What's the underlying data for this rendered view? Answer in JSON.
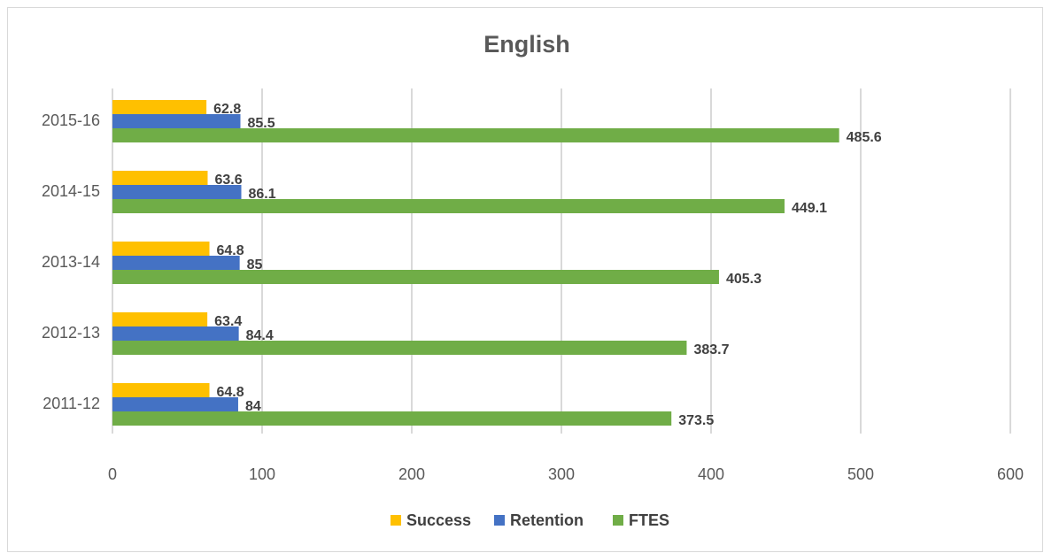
{
  "chart_data": {
    "type": "bar",
    "orientation": "horizontal",
    "title": "English",
    "categories": [
      "2011-12",
      "2012-13",
      "2013-14",
      "2014-15",
      "2015-16"
    ],
    "series": [
      {
        "name": "Success",
        "color": "#ffc000",
        "values": [
          64.8,
          63.4,
          64.8,
          63.6,
          62.8
        ]
      },
      {
        "name": "Retention",
        "color": "#4472c4",
        "values": [
          84,
          84.4,
          85,
          86.1,
          85.5
        ]
      },
      {
        "name": "FTES",
        "color": "#70ad47",
        "values": [
          373.5,
          383.7,
          405.3,
          449.1,
          485.6
        ]
      }
    ],
    "xlim": [
      0,
      600
    ],
    "xticks": [
      0,
      100,
      200,
      300,
      400,
      500,
      600
    ],
    "grid": true,
    "legend": "bottom"
  }
}
